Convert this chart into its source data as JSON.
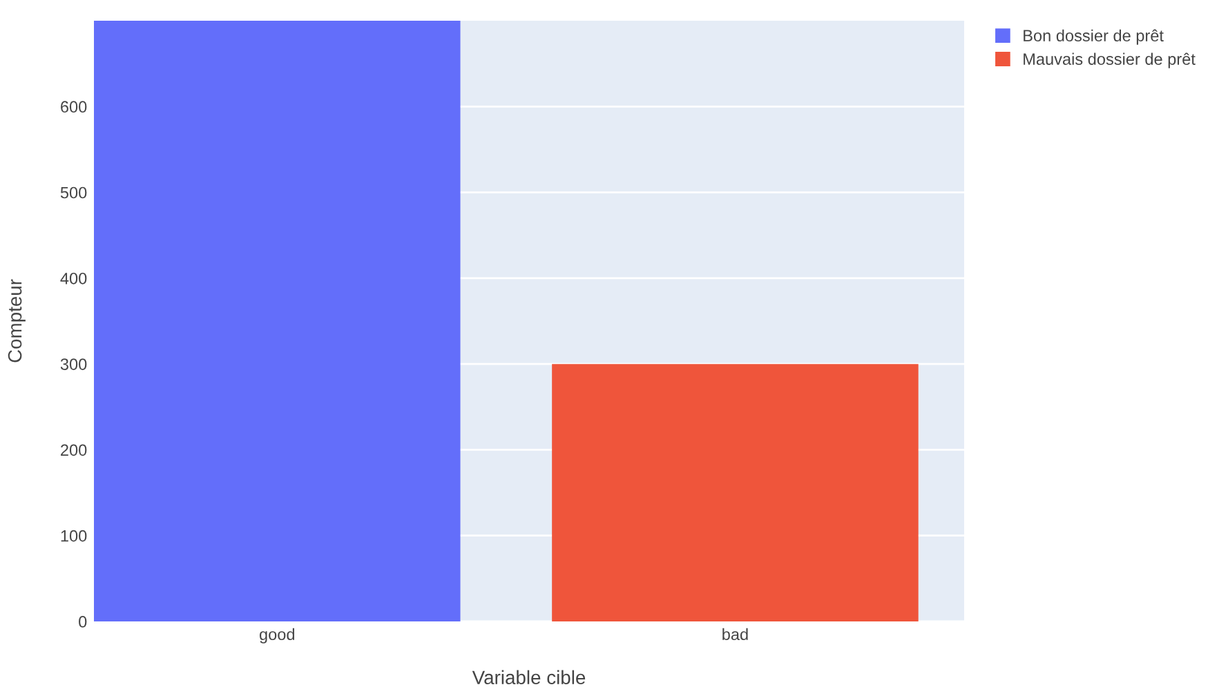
{
  "chart_data": {
    "type": "bar",
    "xlabel": "Variable cible",
    "ylabel": "Compteur",
    "categories": [
      "good",
      "bad"
    ],
    "series": [
      {
        "name": "Bon dossier de prêt",
        "color": "#636efa",
        "values": [
          700,
          null
        ]
      },
      {
        "name": "Mauvais dossier de prêt",
        "color": "#ef553b",
        "values": [
          null,
          300
        ]
      }
    ],
    "ylim": [
      0,
      700
    ],
    "yticks": [
      0,
      100,
      200,
      300,
      400,
      500,
      600
    ],
    "grid": "y",
    "legend": "top right"
  }
}
